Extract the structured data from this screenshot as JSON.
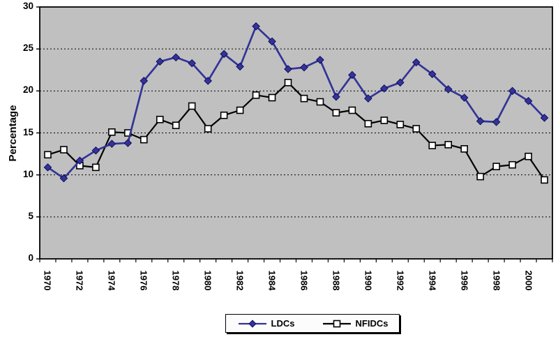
{
  "figure": {
    "background": "#ffffff"
  },
  "chart_data": {
    "type": "line",
    "title": "",
    "xlabel": "",
    "ylabel": "Percentage",
    "ylim": [
      0,
      30
    ],
    "yticks": [
      0,
      5,
      10,
      15,
      20,
      25,
      30
    ],
    "gridlines_at": [
      5,
      10,
      15,
      20,
      25
    ],
    "grid_style": "horizontal-dotted",
    "plot_background": "#c0c0c0",
    "axis_color": "#000000",
    "legend_position": "bottom-center",
    "x": [
      1970,
      1971,
      1972,
      1973,
      1974,
      1975,
      1976,
      1977,
      1978,
      1979,
      1980,
      1981,
      1982,
      1983,
      1984,
      1985,
      1986,
      1987,
      1988,
      1989,
      1990,
      1991,
      1992,
      1993,
      1994,
      1995,
      1996,
      1997,
      1998,
      1999,
      2000,
      2001
    ],
    "xtick_labels": [
      "1970",
      "1972",
      "1974",
      "1976",
      "1978",
      "1980",
      "1982",
      "1984",
      "1986",
      "1988",
      "1990",
      "1992",
      "1994",
      "1996",
      "1998",
      "2000"
    ],
    "series": [
      {
        "name": "LDCs",
        "color": "#333399",
        "marker": "diamond",
        "marker_fill": "#333399",
        "values": [
          10.9,
          9.6,
          11.7,
          12.9,
          13.7,
          13.8,
          21.2,
          23.5,
          24.0,
          23.3,
          21.2,
          24.4,
          22.9,
          27.7,
          25.9,
          22.6,
          22.8,
          23.7,
          19.3,
          21.9,
          19.1,
          20.3,
          21.0,
          23.4,
          22.0,
          20.2,
          19.2,
          16.4,
          16.3,
          20.0,
          18.8,
          16.8
        ]
      },
      {
        "name": "NFIDCs",
        "color": "#000000",
        "marker": "square",
        "marker_fill": "#ffffff",
        "values": [
          12.4,
          13.0,
          11.1,
          10.9,
          15.1,
          15.0,
          14.2,
          16.6,
          15.9,
          18.2,
          15.5,
          17.1,
          17.7,
          19.5,
          19.2,
          21.0,
          19.1,
          18.7,
          17.4,
          17.7,
          16.1,
          16.5,
          16.0,
          15.5,
          13.5,
          13.6,
          13.1,
          9.8,
          11.0,
          11.2,
          12.2,
          9.4
        ]
      }
    ]
  }
}
